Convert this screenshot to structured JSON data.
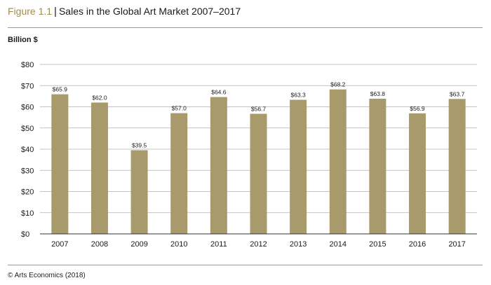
{
  "header": {
    "figure_label": "Figure 1.1",
    "separator": "|",
    "title": "Sales in the Global Art Market 2007–2017"
  },
  "footer": {
    "source": "© Arts Economics (2018)"
  },
  "colors": {
    "bar": "#a89a6a",
    "gridline": "#b0b0b0",
    "axis": "#333333",
    "accent": "#9e8c52"
  },
  "chart_data": {
    "type": "bar",
    "title": "Sales in the Global Art Market 2007–2017",
    "ylabel": "Billion $",
    "xlabel": "",
    "categories": [
      "2007",
      "2008",
      "2009",
      "2010",
      "2011",
      "2012",
      "2013",
      "2014",
      "2015",
      "2016",
      "2017"
    ],
    "values": [
      65.9,
      62.0,
      39.5,
      57.0,
      64.6,
      56.7,
      63.3,
      68.2,
      63.8,
      56.9,
      63.7
    ],
    "data_labels": [
      "$65.9",
      "$62.0",
      "$39.5",
      "$57.0",
      "$64.6",
      "$56.7",
      "$63.3",
      "$68.2",
      "$63.8",
      "$56.9",
      "$63.7"
    ],
    "ylim": [
      0,
      80
    ],
    "yticks": [
      0,
      10,
      20,
      30,
      40,
      50,
      60,
      70,
      80
    ],
    "ytick_labels": [
      "$0",
      "$10",
      "$20",
      "$30",
      "$40",
      "$50",
      "$60",
      "$70",
      "$80"
    ],
    "grid": true,
    "legend": "none"
  }
}
